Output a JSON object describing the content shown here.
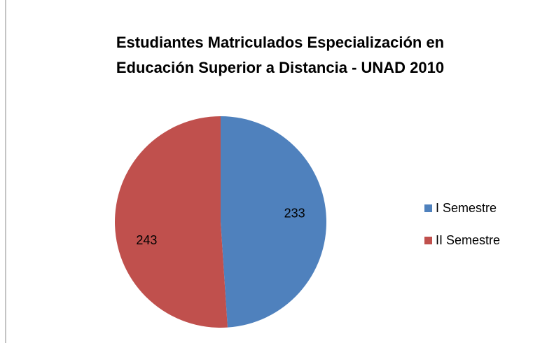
{
  "chart_data": {
    "type": "pie",
    "title": [
      "Estudiantes Matriculados Especialización en",
      "Educación Superior a Distancia - UNAD 2010"
    ],
    "categories": [
      "I Semestre",
      "II Semestre"
    ],
    "values": [
      233,
      243
    ],
    "colors": [
      "#4f81bd",
      "#c0504d"
    ],
    "legend": "right"
  }
}
